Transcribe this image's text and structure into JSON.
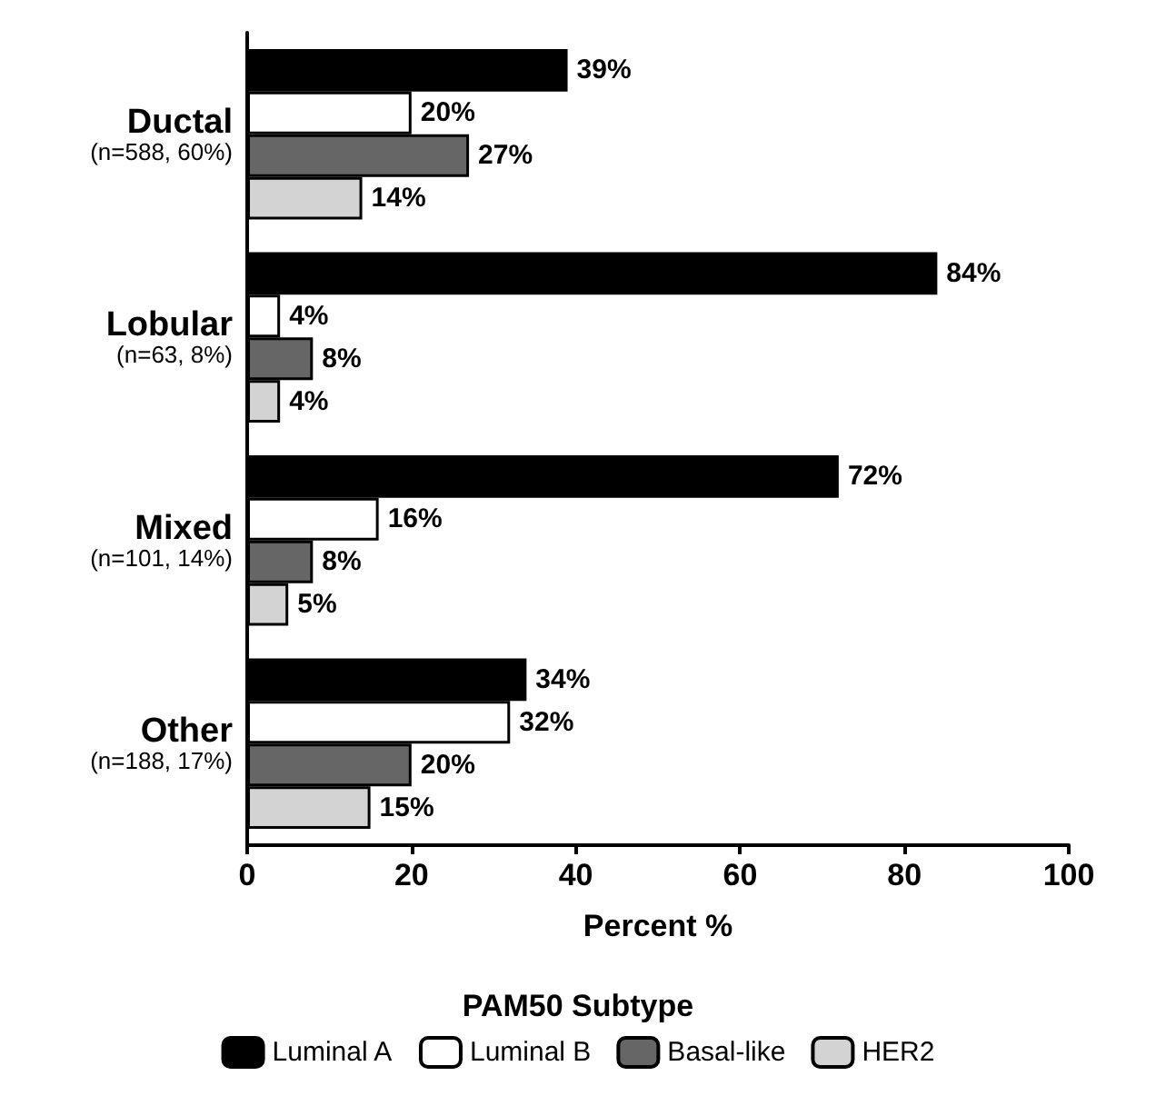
{
  "chart_data": {
    "type": "bar",
    "orientation": "horizontal",
    "categories": [
      "Ductal\n(n=588, 60%)",
      "Lobular\n(n=63, 8%)",
      "Mixed\n(n=101, 14%)",
      "Other\n(n=188, 17%)"
    ],
    "series": [
      {
        "name": "Luminal A",
        "color": "#000000",
        "values": [
          39,
          84,
          72,
          34
        ],
        "value_labels": [
          "39%",
          "84%",
          "72%",
          "34%"
        ]
      },
      {
        "name": "Luminal B",
        "color": "#ffffff",
        "values": [
          20,
          4,
          16,
          32
        ],
        "value_labels": [
          "20%",
          "4%",
          "16%",
          "32%"
        ]
      },
      {
        "name": "Basal-like",
        "color": "#666666",
        "values": [
          27,
          8,
          8,
          20
        ],
        "value_labels": [
          "27%",
          "8%",
          "8%",
          "20%"
        ]
      },
      {
        "name": "HER2",
        "color": "#d3d3d3",
        "values": [
          14,
          4,
          5,
          15
        ],
        "value_labels": [
          "14%",
          "4%",
          "5%",
          "15%"
        ]
      }
    ],
    "xlim": [
      0,
      100
    ],
    "xticks": [
      0,
      20,
      40,
      60,
      80,
      100
    ],
    "xlabel": "Percent %",
    "legend_title": "PAM50 Subtype",
    "legend": "bottom",
    "grid": false
  }
}
